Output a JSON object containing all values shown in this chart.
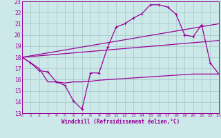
{
  "xlabel": "Windchill (Refroidissement éolien,°C)",
  "bg_color": "#cce8e8",
  "grid_color": "#aacccc",
  "line_color": "#990099",
  "xlim": [
    0,
    23
  ],
  "ylim": [
    13,
    23
  ],
  "xticks": [
    0,
    1,
    2,
    3,
    4,
    5,
    6,
    7,
    8,
    9,
    10,
    11,
    12,
    13,
    14,
    15,
    16,
    17,
    18,
    19,
    20,
    21,
    22,
    23
  ],
  "yticks": [
    13,
    14,
    15,
    16,
    17,
    18,
    19,
    20,
    21,
    22,
    23
  ],
  "line1_x": [
    0,
    1,
    2,
    3,
    4,
    5,
    6,
    7,
    8,
    9,
    10,
    11,
    12,
    13,
    14,
    15,
    16,
    17,
    18,
    19,
    20,
    21,
    22,
    23
  ],
  "line1_y": [
    18.0,
    17.5,
    17.0,
    15.8,
    15.8,
    15.7,
    15.8,
    15.8,
    15.85,
    15.95,
    16.0,
    16.05,
    16.1,
    16.15,
    16.2,
    16.25,
    16.3,
    16.35,
    16.4,
    16.45,
    16.5,
    16.5,
    16.5,
    16.5
  ],
  "line2_x": [
    0,
    1,
    2,
    3,
    4,
    5,
    6,
    7,
    8,
    9,
    10,
    11,
    12,
    13,
    14,
    15,
    16,
    17,
    18,
    19,
    20,
    21,
    22,
    23
  ],
  "line2_y": [
    18.0,
    17.5,
    16.8,
    16.7,
    15.8,
    15.5,
    14.1,
    13.35,
    16.6,
    16.6,
    18.9,
    20.7,
    21.0,
    21.5,
    21.9,
    22.7,
    22.7,
    22.5,
    21.85,
    20.0,
    19.85,
    20.9,
    17.5,
    16.5
  ],
  "line3_x": [
    0,
    23
  ],
  "line3_y": [
    18.0,
    21.0
  ],
  "line4_x": [
    0,
    23
  ],
  "line4_y": [
    18.0,
    19.5
  ],
  "marker_x": [
    0,
    1,
    2,
    3,
    4,
    5,
    6,
    7,
    8,
    9,
    10,
    11,
    12,
    13,
    14,
    15,
    16,
    17,
    18,
    19,
    20,
    21,
    22,
    23
  ],
  "marker_y": [
    18.0,
    17.5,
    16.8,
    16.7,
    15.8,
    15.5,
    14.1,
    13.35,
    16.6,
    16.6,
    18.9,
    20.7,
    21.0,
    21.5,
    21.9,
    22.7,
    22.7,
    22.5,
    21.85,
    20.0,
    19.85,
    20.9,
    17.5,
    16.5
  ]
}
